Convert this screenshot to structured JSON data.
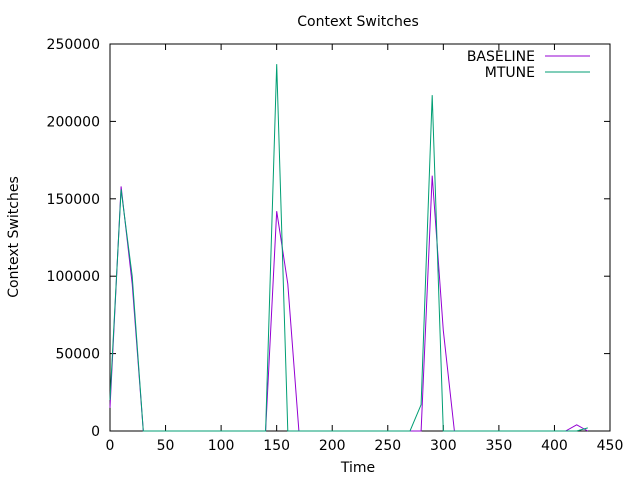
{
  "chart_data": {
    "type": "line",
    "title": "Context Switches",
    "xlabel": "Time",
    "ylabel": "Context Switches",
    "xlim": [
      0,
      450
    ],
    "ylim": [
      0,
      250000
    ],
    "xticks": [
      0,
      50,
      100,
      150,
      200,
      250,
      300,
      350,
      400,
      450
    ],
    "yticks": [
      0,
      50000,
      100000,
      150000,
      200000,
      250000
    ],
    "grid": false,
    "legend": "top-right",
    "series": [
      {
        "name": "BASELINE",
        "color": "#9400d3",
        "x": [
          0,
          10,
          20,
          30,
          40,
          140,
          150,
          160,
          170,
          180,
          270,
          280,
          290,
          300,
          310,
          320,
          410,
          420,
          430
        ],
        "y": [
          15000,
          158000,
          95000,
          0,
          0,
          0,
          142000,
          95000,
          0,
          0,
          0,
          0,
          165000,
          65000,
          0,
          0,
          0,
          4000,
          0
        ]
      },
      {
        "name": "MTUNE",
        "color": "#009e73",
        "x": [
          0,
          10,
          20,
          30,
          40,
          140,
          150,
          160,
          170,
          270,
          280,
          290,
          300,
          310,
          410,
          420,
          430
        ],
        "y": [
          20000,
          156000,
          100000,
          0,
          0,
          0,
          237000,
          0,
          0,
          0,
          17000,
          217000,
          0,
          0,
          0,
          0,
          2000
        ]
      }
    ]
  }
}
